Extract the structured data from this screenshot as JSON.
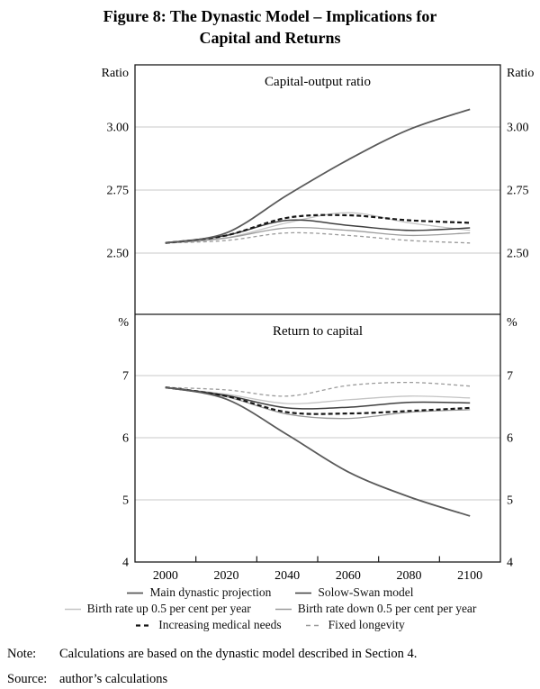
{
  "figure": {
    "title_line1": "Figure 8: The Dynastic Model – Implications for",
    "title_line2": "Capital and Returns"
  },
  "note": {
    "label": "Note:",
    "text": "Calculations are based on the dynastic model described in Section 4."
  },
  "source": {
    "label": "Source:",
    "text": "author’s calculations"
  },
  "chart_data": {
    "type": "line",
    "x_years": [
      2000,
      2020,
      2040,
      2060,
      2080,
      2100
    ],
    "x_axis": {
      "range": [
        1990,
        2110
      ],
      "tick_marks": [
        2010,
        2030,
        2050,
        2070,
        2090
      ],
      "labels": [
        "2000",
        "2020",
        "2040",
        "2060",
        "2080",
        "2100"
      ]
    },
    "panels": [
      {
        "title": "Capital-output ratio",
        "unit_label": "Ratio",
        "ylim": [
          2.26,
          3.25
        ],
        "gridlines": [
          2.5,
          2.75,
          3.0
        ],
        "ticks": [
          {
            "label": "3.00",
            "v": 3.0
          },
          {
            "label": "2.75",
            "v": 2.75
          },
          {
            "label": "2.50",
            "v": 2.5
          }
        ],
        "series": [
          {
            "name": "Main dynastic projection",
            "values": [
              2.54,
              2.58,
              2.73,
              2.87,
              2.99,
              3.07
            ]
          },
          {
            "name": "Solow-Swan model",
            "values": [
              2.54,
              2.57,
              2.63,
              2.61,
              2.59,
              2.6
            ]
          },
          {
            "name": "Birth rate up 0.5 per cent per year",
            "values": [
              2.54,
              2.56,
              2.62,
              2.66,
              2.62,
              2.59
            ]
          },
          {
            "name": "Birth rate down 0.5 per cent per year",
            "values": [
              2.54,
              2.56,
              2.6,
              2.59,
              2.57,
              2.58
            ]
          },
          {
            "name": "Increasing medical needs",
            "values": [
              2.54,
              2.57,
              2.64,
              2.65,
              2.63,
              2.62
            ]
          },
          {
            "name": "Fixed longevity",
            "values": [
              2.54,
              2.55,
              2.58,
              2.57,
              2.55,
              2.54
            ]
          }
        ]
      },
      {
        "title": "Return to capital",
        "unit_label": "%",
        "ylim": [
          4,
          7.95
        ],
        "gridlines": [
          5,
          6,
          7
        ],
        "ticks": [
          {
            "label": "7",
            "v": 7
          },
          {
            "label": "6",
            "v": 6
          },
          {
            "label": "5",
            "v": 5
          },
          {
            "label": "4",
            "v": 4
          }
        ],
        "series": [
          {
            "name": "Main dynastic projection",
            "values": [
              6.81,
              6.62,
              6.05,
              5.45,
              5.05,
              4.74
            ]
          },
          {
            "name": "Solow-Swan model",
            "values": [
              6.81,
              6.68,
              6.48,
              6.49,
              6.57,
              6.56
            ]
          },
          {
            "name": "Birth rate up 0.5 per cent per year",
            "values": [
              6.81,
              6.7,
              6.55,
              6.61,
              6.67,
              6.64
            ]
          },
          {
            "name": "Birth rate down 0.5 per cent per year",
            "values": [
              6.81,
              6.66,
              6.38,
              6.31,
              6.41,
              6.45
            ]
          },
          {
            "name": "Increasing medical needs",
            "values": [
              6.81,
              6.67,
              6.41,
              6.39,
              6.43,
              6.48
            ]
          },
          {
            "name": "Fixed longevity",
            "values": [
              6.81,
              6.77,
              6.67,
              6.84,
              6.89,
              6.83
            ]
          }
        ]
      }
    ],
    "series_styles": [
      {
        "name": "Main dynastic projection",
        "color": "#5a5a5a",
        "dash": "",
        "width": 1.8
      },
      {
        "name": "Solow-Swan model",
        "color": "#3f3f3f",
        "dash": "",
        "width": 1.5
      },
      {
        "name": "Birth rate up 0.5 per cent per year",
        "color": "#c4c4c4",
        "dash": "",
        "width": 1.3
      },
      {
        "name": "Birth rate down 0.5 per cent per year",
        "color": "#9b9b9b",
        "dash": "",
        "width": 1.3
      },
      {
        "name": "Increasing medical needs",
        "color": "#161616",
        "dash": "5,3",
        "width": 2.2
      },
      {
        "name": "Fixed longevity",
        "color": "#9b9b9b",
        "dash": "4,3",
        "width": 1.3
      }
    ],
    "legend_rows": [
      [
        0,
        1
      ],
      [
        2,
        3
      ],
      [
        4,
        5
      ]
    ],
    "colors": {
      "axis": "#1a1a1a",
      "gridline": "#c9c9c9",
      "text": "#000000"
    }
  }
}
